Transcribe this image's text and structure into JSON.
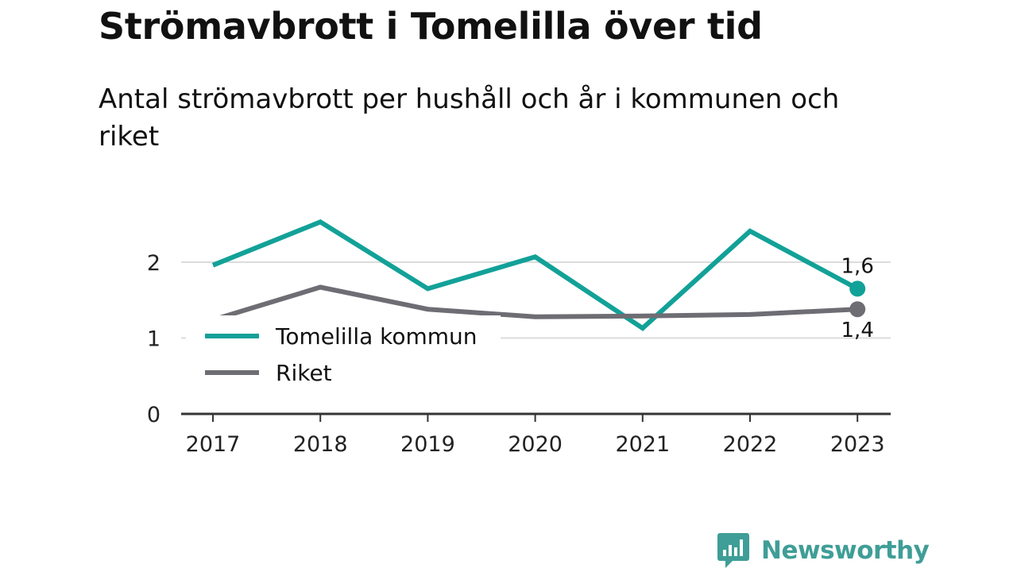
{
  "title": "Strömavbrott i Tomelilla över tid",
  "subtitle": "Antal strömavbrott per hushåll och år i kommunen och riket",
  "brand": {
    "name": "Newsworthy",
    "icon": "bar-chart-speech-bubble-icon",
    "color": "#3f9e97"
  },
  "chart_data": {
    "type": "line",
    "x": [
      "2017",
      "2018",
      "2019",
      "2020",
      "2021",
      "2022",
      "2023"
    ],
    "y_ticks": [
      "0",
      "1",
      "2"
    ],
    "ylim": [
      0,
      2.6
    ],
    "grid": true,
    "legend_position": "center-left",
    "series": [
      {
        "name": "Tomelilla kommun",
        "color": "#12a198",
        "values": [
          1.96,
          2.53,
          1.65,
          2.07,
          1.13,
          2.41,
          1.65
        ],
        "end_label": "1,6"
      },
      {
        "name": "Riket",
        "color": "#6e6d74",
        "values": [
          1.24,
          1.67,
          1.38,
          1.28,
          1.29,
          1.31,
          1.38
        ],
        "end_label": "1,4"
      }
    ]
  }
}
